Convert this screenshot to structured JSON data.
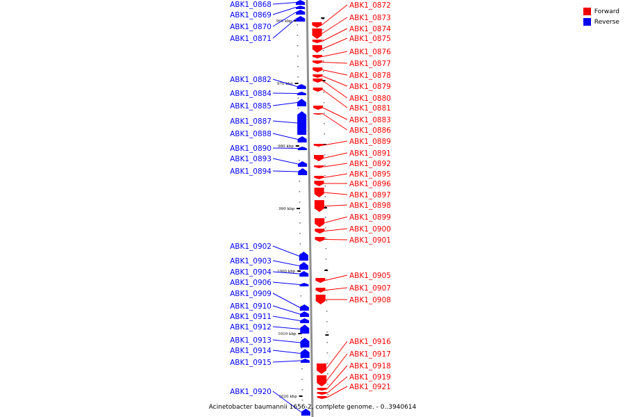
{
  "genome_title": "Acinetobacter baumannii 1656-2, complete genome. - 0..3940614",
  "colors": {
    "forward": "#ff0000",
    "reverse": "#0000ff",
    "backbone": "#888888"
  },
  "legend": [
    {
      "label": "Forward",
      "color": "#ee0000"
    },
    {
      "label": "Reverse",
      "color": "#0000ee"
    }
  ],
  "scale_marks": [
    {
      "label": "960 kbp",
      "kbp": 960
    },
    {
      "label": "970 kbp",
      "kbp": 970
    },
    {
      "label": "980 kbp",
      "kbp": 980
    },
    {
      "label": "990 kbp",
      "kbp": 990
    },
    {
      "label": "1000 kbp",
      "kbp": 1000
    },
    {
      "label": "1010 kbp",
      "kbp": 1010
    },
    {
      "label": "1020 kbp",
      "kbp": 1020
    }
  ],
  "genes_forward": [
    "ABK1_0872",
    "ABK1_0873",
    "ABK1_0874",
    "ABK1_0875",
    "ABK1_0876",
    "ABK1_0877",
    "ABK1_0878",
    "ABK1_0879",
    "ABK1_0880",
    "ABK1_0881",
    "ABK1_0883",
    "ABK1_0886",
    "ABK1_0889",
    "ABK1_0891",
    "ABK1_0892",
    "ABK1_0895",
    "ABK1_0896",
    "ABK1_0897",
    "ABK1_0898",
    "ABK1_0899",
    "ABK1_0900",
    "ABK1_0901",
    "ABK1_0905",
    "ABK1_0907",
    "ABK1_0908",
    "ABK1_0916",
    "ABK1_0917",
    "ABK1_0918",
    "ABK1_0919",
    "ABK1_0921"
  ],
  "genes_reverse": [
    "ABK1_0868",
    "ABK1_0869",
    "ABK1_0870",
    "ABK1_0871",
    "ABK1_0882",
    "ABK1_0884",
    "ABK1_0885",
    "ABK1_0887",
    "ABK1_0888",
    "ABK1_0890",
    "ABK1_0893",
    "ABK1_0894",
    "ABK1_0902",
    "ABK1_0903",
    "ABK1_0904",
    "ABK1_0906",
    "ABK1_0909",
    "ABK1_0910",
    "ABK1_0911",
    "ABK1_0912",
    "ABK1_0913",
    "ABK1_0914",
    "ABK1_0915",
    "ABK1_0920"
  ]
}
